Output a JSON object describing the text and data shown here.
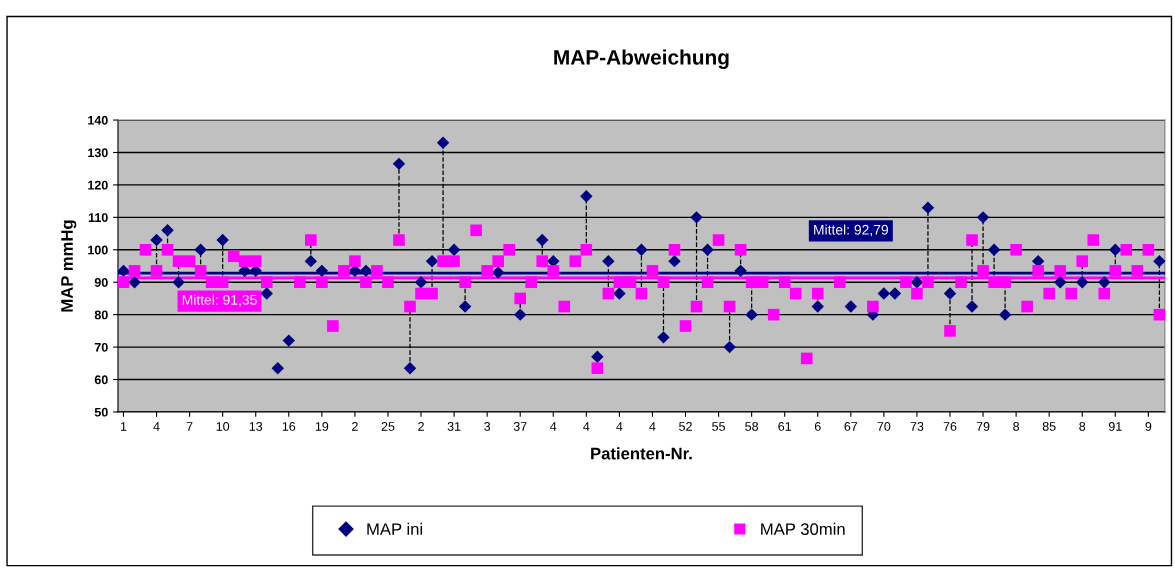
{
  "chart_data": {
    "type": "scatter",
    "title": "MAP-Abweichung",
    "xlabel": "Patienten-Nr.",
    "ylabel": "MAP mmHg",
    "categories": [
      "1",
      null,
      null,
      "4",
      null,
      null,
      "7",
      null,
      null,
      "10",
      null,
      null,
      "13",
      null,
      null,
      "16",
      null,
      null,
      "19",
      null,
      null,
      "2",
      null,
      null,
      "25",
      null,
      null,
      "2",
      null,
      null,
      "31",
      null,
      null,
      "3",
      null,
      null,
      "37",
      null,
      null,
      "4",
      null,
      null,
      "4",
      null,
      null,
      "4",
      null,
      null,
      "4",
      null,
      null,
      "52",
      null,
      null,
      "55",
      null,
      null,
      "58",
      null,
      null,
      "61",
      null,
      null,
      "6",
      null,
      null,
      "67",
      null,
      null,
      "70",
      null,
      null,
      "73",
      null,
      null,
      "76",
      null,
      null,
      "79",
      null,
      null,
      "8",
      null,
      null,
      "85",
      null,
      null,
      "8",
      null,
      null,
      "91",
      null,
      null,
      "9",
      null
    ],
    "series": [
      {
        "name": "MAP ini",
        "color": "#000080",
        "marker": "diamond",
        "values": [
          93.5,
          90,
          null,
          103,
          106,
          90,
          null,
          100,
          null,
          103,
          null,
          93.5,
          93.5,
          86.5,
          63.5,
          72,
          null,
          96.5,
          93.5,
          null,
          null,
          93.5,
          93.5,
          null,
          null,
          126.5,
          63.5,
          90,
          96.5,
          133,
          100,
          82.5,
          null,
          null,
          93,
          null,
          80,
          null,
          103,
          96.5,
          null,
          null,
          116.5,
          67,
          96.5,
          86.5,
          null,
          100,
          null,
          73,
          96.5,
          null,
          110,
          100,
          null,
          70,
          93.5,
          80,
          null,
          null,
          null,
          null,
          null,
          82.5,
          null,
          null,
          82.5,
          null,
          80,
          86.5,
          86.5,
          null,
          90,
          113,
          null,
          86.5,
          null,
          82.5,
          110,
          100,
          80,
          null,
          null,
          96.5,
          null,
          90,
          null,
          90,
          null,
          90,
          100,
          null,
          null,
          null,
          96.5
        ]
      },
      {
        "name": "MAP 30min",
        "color": "#ff00ff",
        "marker": "square",
        "values": [
          90,
          93.5,
          100,
          93.5,
          100,
          96.5,
          96.5,
          93.5,
          90,
          90,
          98,
          96.5,
          96.5,
          90,
          null,
          null,
          90,
          103,
          90,
          76.5,
          93.5,
          96.5,
          90,
          93.5,
          90,
          103,
          82.5,
          86.5,
          86.5,
          96.5,
          96.5,
          90,
          106,
          93.5,
          96.5,
          100,
          85,
          90,
          96.5,
          93.5,
          82.5,
          96.5,
          100,
          63.5,
          86.5,
          90,
          90,
          86.5,
          93.5,
          90,
          100,
          76.5,
          82.5,
          90,
          103,
          82.5,
          100,
          90,
          90,
          80,
          90,
          86.5,
          66.5,
          86.5,
          null,
          90,
          null,
          null,
          82.5,
          null,
          null,
          90,
          86.5,
          90,
          null,
          75,
          90,
          103,
          93.5,
          90,
          90,
          100,
          82.5,
          93.5,
          86.5,
          93.5,
          86.5,
          96.5,
          103,
          86.5,
          93.5,
          100,
          93.5,
          100,
          80
        ]
      }
    ],
    "ylim": [
      50,
      140
    ],
    "yticks": [
      50,
      60,
      70,
      80,
      90,
      100,
      110,
      120,
      130,
      140
    ],
    "grid": "y",
    "legend": "bottom",
    "line_style": "dashed",
    "ref_lines": [
      {
        "axis": "y",
        "value": 91.35,
        "label": "Mittel: 91,35",
        "color": "#ff00ff"
      },
      {
        "axis": "y",
        "value": 92.79,
        "label": "Mittel: 92,79",
        "color": "#000080"
      }
    ]
  }
}
